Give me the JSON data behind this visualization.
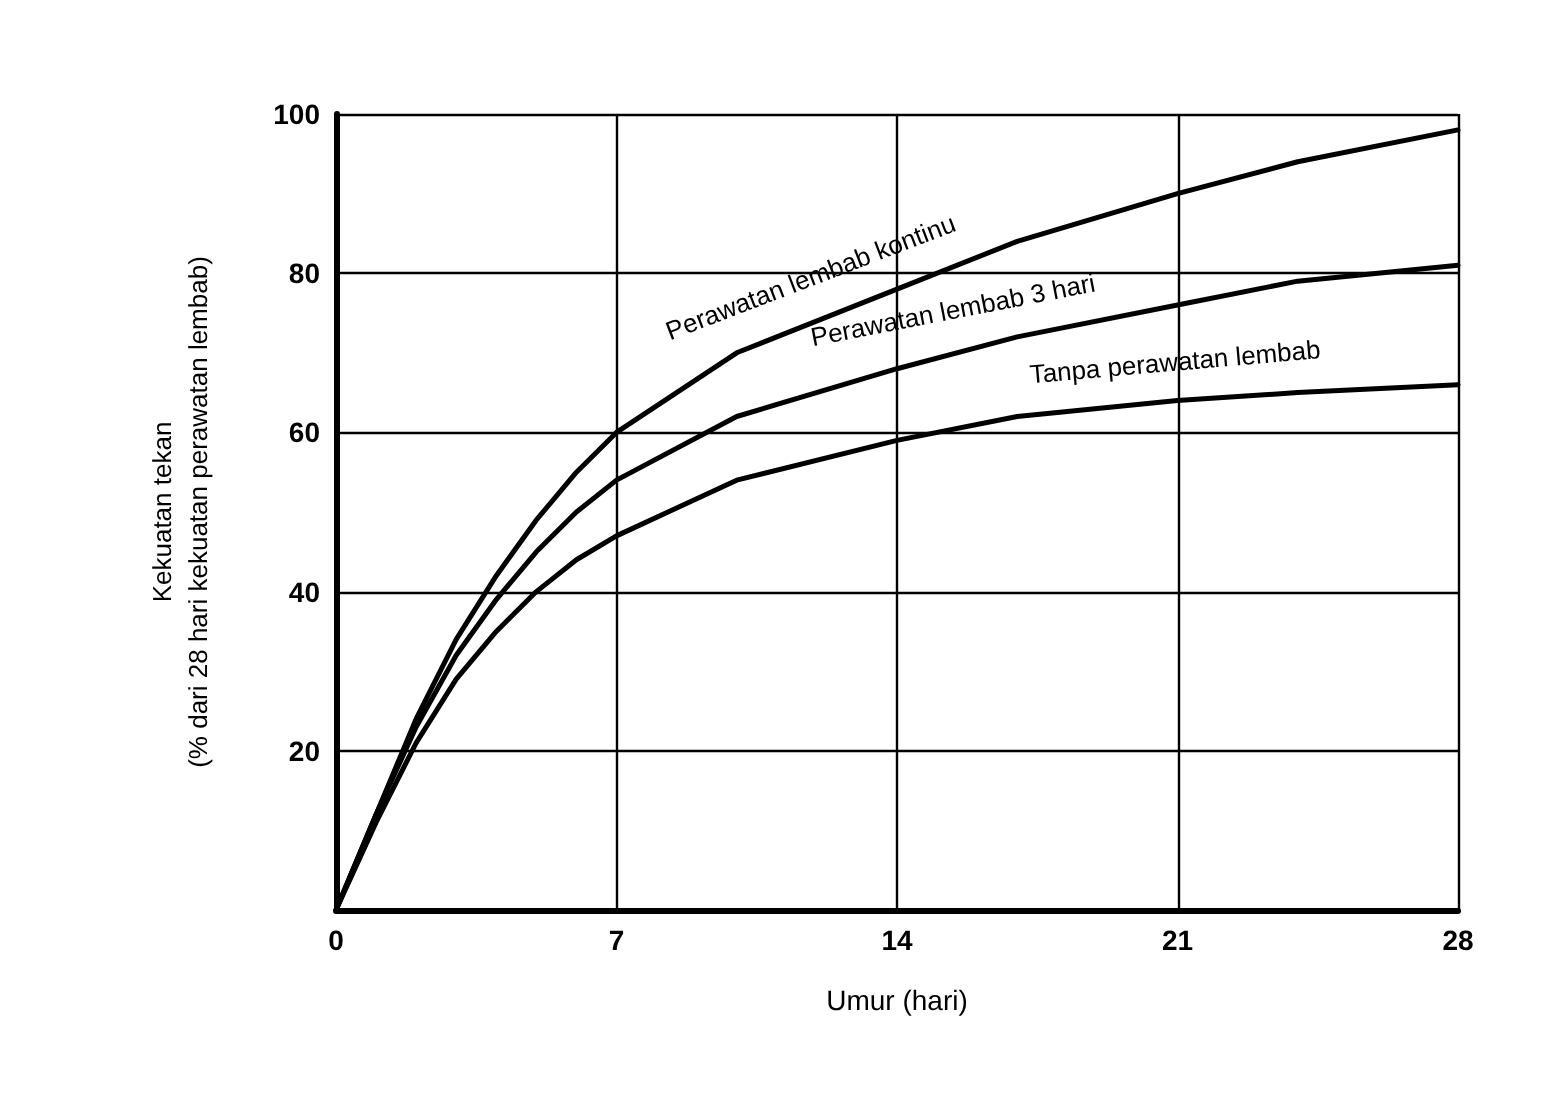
{
  "chart_data": {
    "type": "line",
    "xlabel": "Umur (hari)",
    "ylabel": "Kekuatan tekan\n(% dari 28 hari kekuatan perawatan lembab)",
    "x": [
      0,
      1,
      2,
      3,
      4,
      5,
      6,
      7,
      10,
      14,
      17,
      21,
      24,
      28
    ],
    "series": [
      {
        "name": "Perawatan lembab kontinu",
        "color": "#000000",
        "values": [
          0,
          12,
          24,
          34,
          42,
          49,
          55,
          60,
          70,
          78,
          84,
          90,
          94,
          98
        ]
      },
      {
        "name": "Perawatan lembab 3 hari",
        "color": "#000000",
        "values": [
          0,
          12,
          23,
          32,
          39,
          45,
          50,
          54,
          62,
          68,
          72,
          76,
          79,
          81
        ]
      },
      {
        "name": "Tanpa perawatan lembab",
        "color": "#000000",
        "values": [
          0,
          11,
          21,
          29,
          35,
          40,
          44,
          47,
          54,
          59,
          62,
          64,
          65,
          66
        ]
      }
    ],
    "xlim": [
      0,
      28
    ],
    "xticks": [
      0,
      7,
      14,
      21,
      28
    ],
    "ylim": [
      0,
      100
    ],
    "yticks": [
      {
        "value": 0,
        "label": null
      },
      20,
      40,
      60,
      80,
      100
    ],
    "grid": true,
    "legend": false,
    "marker": "none",
    "line_style": "solid"
  }
}
